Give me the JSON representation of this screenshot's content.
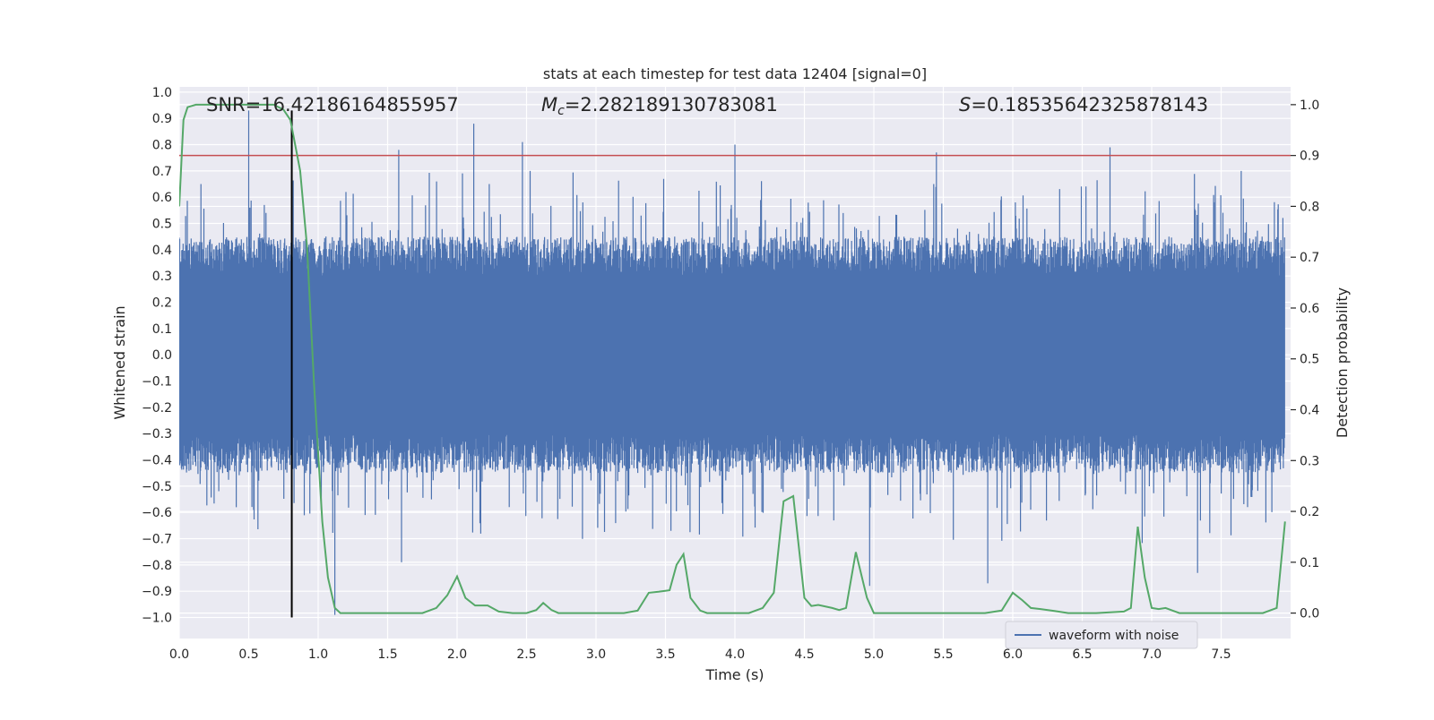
{
  "chart_data": {
    "type": "line",
    "title": "stats at each timestep for test data 12404 [signal=0]",
    "xlabel": "Time (s)",
    "ylabel_left": "Whitened strain",
    "ylabel_right": "Detection probability",
    "xlim": [
      0.0,
      8.0
    ],
    "ylim_left": [
      -1.08,
      1.02
    ],
    "ylim_right": [
      -0.05,
      1.035
    ],
    "x_ticks": [
      0.0,
      0.5,
      1.0,
      1.5,
      2.0,
      2.5,
      3.0,
      3.5,
      4.0,
      4.5,
      5.0,
      5.5,
      6.0,
      6.5,
      7.0,
      7.5
    ],
    "x_tick_labels": [
      "0.0",
      "0.5",
      "1.0",
      "1.5",
      "2.0",
      "2.5",
      "3.0",
      "3.5",
      "4.0",
      "4.5",
      "5.0",
      "5.5",
      "6.0",
      "6.5",
      "7.0",
      "7.5"
    ],
    "y_left_ticks": [
      1.0,
      0.9,
      0.8,
      0.7,
      0.6,
      0.5,
      0.4,
      0.3,
      0.2,
      0.1,
      0.0,
      -0.1,
      -0.2,
      -0.3,
      -0.4,
      -0.5,
      -0.6,
      -0.7,
      -0.8,
      -0.9,
      -1.0
    ],
    "y_left_tick_labels": [
      "1.0",
      "0.9",
      "0.8",
      "0.7",
      "0.6",
      "0.5",
      "0.4",
      "0.3",
      "0.2",
      "0.1",
      "0.0",
      "−0.1",
      "−0.2",
      "−0.3",
      "−0.4",
      "−0.5",
      "−0.6",
      "−0.7",
      "−0.8",
      "−0.9",
      "−1.0"
    ],
    "y_right_ticks": [
      1.0,
      0.9,
      0.8,
      0.7,
      0.6,
      0.5,
      0.4,
      0.3,
      0.2,
      0.1,
      0.0
    ],
    "y_right_tick_labels": [
      "1.0",
      "0.9",
      "0.8",
      "0.7",
      "0.6",
      "0.5",
      "0.4",
      "0.3",
      "0.2",
      "0.1",
      "0.0"
    ],
    "annotations": {
      "snr": "SNR=16.42186164855957",
      "mc_symbol": "M",
      "mc_sub": "c",
      "mc_value": "=2.282189130783081",
      "s_symbol": "S",
      "s_value": "=0.18535642325878143"
    },
    "threshold_probability": 0.9,
    "marker_time": 0.81,
    "legend": [
      {
        "label": "waveform with noise",
        "color": "#4c72b0"
      }
    ],
    "colors": {
      "waveform": "#4c72b0",
      "probability": "#55a868",
      "threshold": "#c44e52",
      "marker": "#000000",
      "background": "#eaeaf2",
      "grid": "#ffffff"
    },
    "series": [
      {
        "name": "waveform with noise",
        "axis": "left",
        "description": "whitened strain noise, envelope approx. ±0.45 with spikes",
        "peak_max": 0.93,
        "peak_min": -0.99
      },
      {
        "name": "detection probability",
        "axis": "right",
        "x": [
          0.0,
          0.03,
          0.06,
          0.12,
          0.3,
          0.5,
          0.68,
          0.75,
          0.8,
          0.87,
          0.92,
          0.97,
          1.03,
          1.07,
          1.12,
          1.16,
          1.22,
          1.3,
          1.4,
          1.6,
          1.75,
          1.85,
          1.93,
          2.0,
          2.06,
          2.13,
          2.22,
          2.3,
          2.4,
          2.5,
          2.57,
          2.62,
          2.68,
          2.73,
          2.8,
          2.9,
          3.0,
          3.2,
          3.3,
          3.38,
          3.45,
          3.53,
          3.58,
          3.63,
          3.68,
          3.75,
          3.8,
          3.9,
          4.1,
          4.2,
          4.28,
          4.35,
          4.42,
          4.5,
          4.55,
          4.6,
          4.7,
          4.75,
          4.8,
          4.87,
          4.95,
          5.0,
          5.2,
          5.5,
          5.8,
          5.92,
          6.0,
          6.07,
          6.13,
          6.2,
          6.3,
          6.4,
          6.5,
          6.6,
          6.8,
          6.85,
          6.9,
          6.95,
          7.0,
          7.05,
          7.1,
          7.15,
          7.2,
          7.3,
          7.6,
          7.8,
          7.9,
          7.96
        ],
        "values": [
          0.8,
          0.97,
          0.995,
          1.0,
          1.0,
          1.0,
          1.0,
          0.99,
          0.97,
          0.87,
          0.72,
          0.45,
          0.18,
          0.07,
          0.01,
          0.0,
          0.0,
          0.0,
          0.0,
          0.0,
          0.0,
          0.01,
          0.035,
          0.072,
          0.03,
          0.015,
          0.015,
          0.003,
          0.0,
          0.0,
          0.006,
          0.02,
          0.006,
          0.0,
          0.0,
          0.0,
          0.0,
          0.0,
          0.005,
          0.04,
          0.042,
          0.045,
          0.095,
          0.116,
          0.03,
          0.005,
          0.0,
          0.0,
          0.0,
          0.01,
          0.04,
          0.22,
          0.23,
          0.03,
          0.014,
          0.016,
          0.01,
          0.006,
          0.01,
          0.12,
          0.03,
          0.0,
          0.0,
          0.0,
          0.0,
          0.005,
          0.04,
          0.025,
          0.01,
          0.008,
          0.004,
          0.0,
          0.0,
          0.0,
          0.003,
          0.01,
          0.17,
          0.07,
          0.01,
          0.008,
          0.01,
          0.005,
          0.0,
          0.0,
          0.0,
          0.0,
          0.01,
          0.18
        ]
      }
    ]
  }
}
